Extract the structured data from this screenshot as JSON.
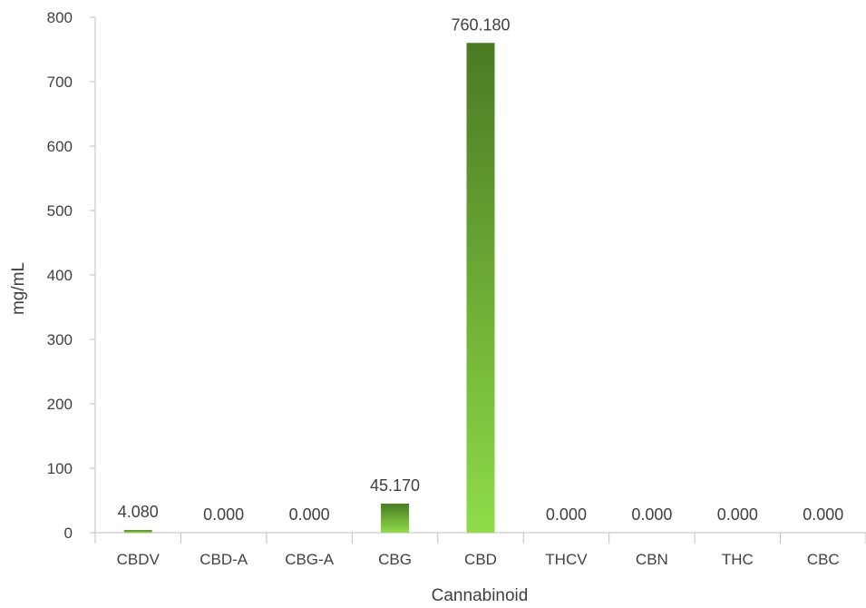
{
  "chart_data": {
    "type": "bar",
    "title": "",
    "xlabel": "Cannabinoid",
    "ylabel": "mg/mL",
    "categories": [
      "CBDV",
      "CBD-A",
      "CBG-A",
      "CBG",
      "CBD",
      "THCV",
      "CBN",
      "THC",
      "CBC"
    ],
    "values": [
      4.08,
      0,
      0,
      45.17,
      760.18,
      0,
      0,
      0,
      0
    ],
    "data_labels": [
      "4.080",
      "0.000",
      "0.000",
      "45.170",
      "760.180",
      "0.000",
      "0.000",
      "0.000",
      "0.000"
    ],
    "ylim": [
      0,
      800
    ],
    "yticks": [
      0,
      100,
      200,
      300,
      400,
      500,
      600,
      700,
      800
    ],
    "grid": false,
    "legend": "none",
    "colors": {
      "bar_top": "#4a7a23",
      "bar_bottom": "#8fdc48",
      "axis": "#bfbfbf",
      "text": "#404040"
    }
  }
}
